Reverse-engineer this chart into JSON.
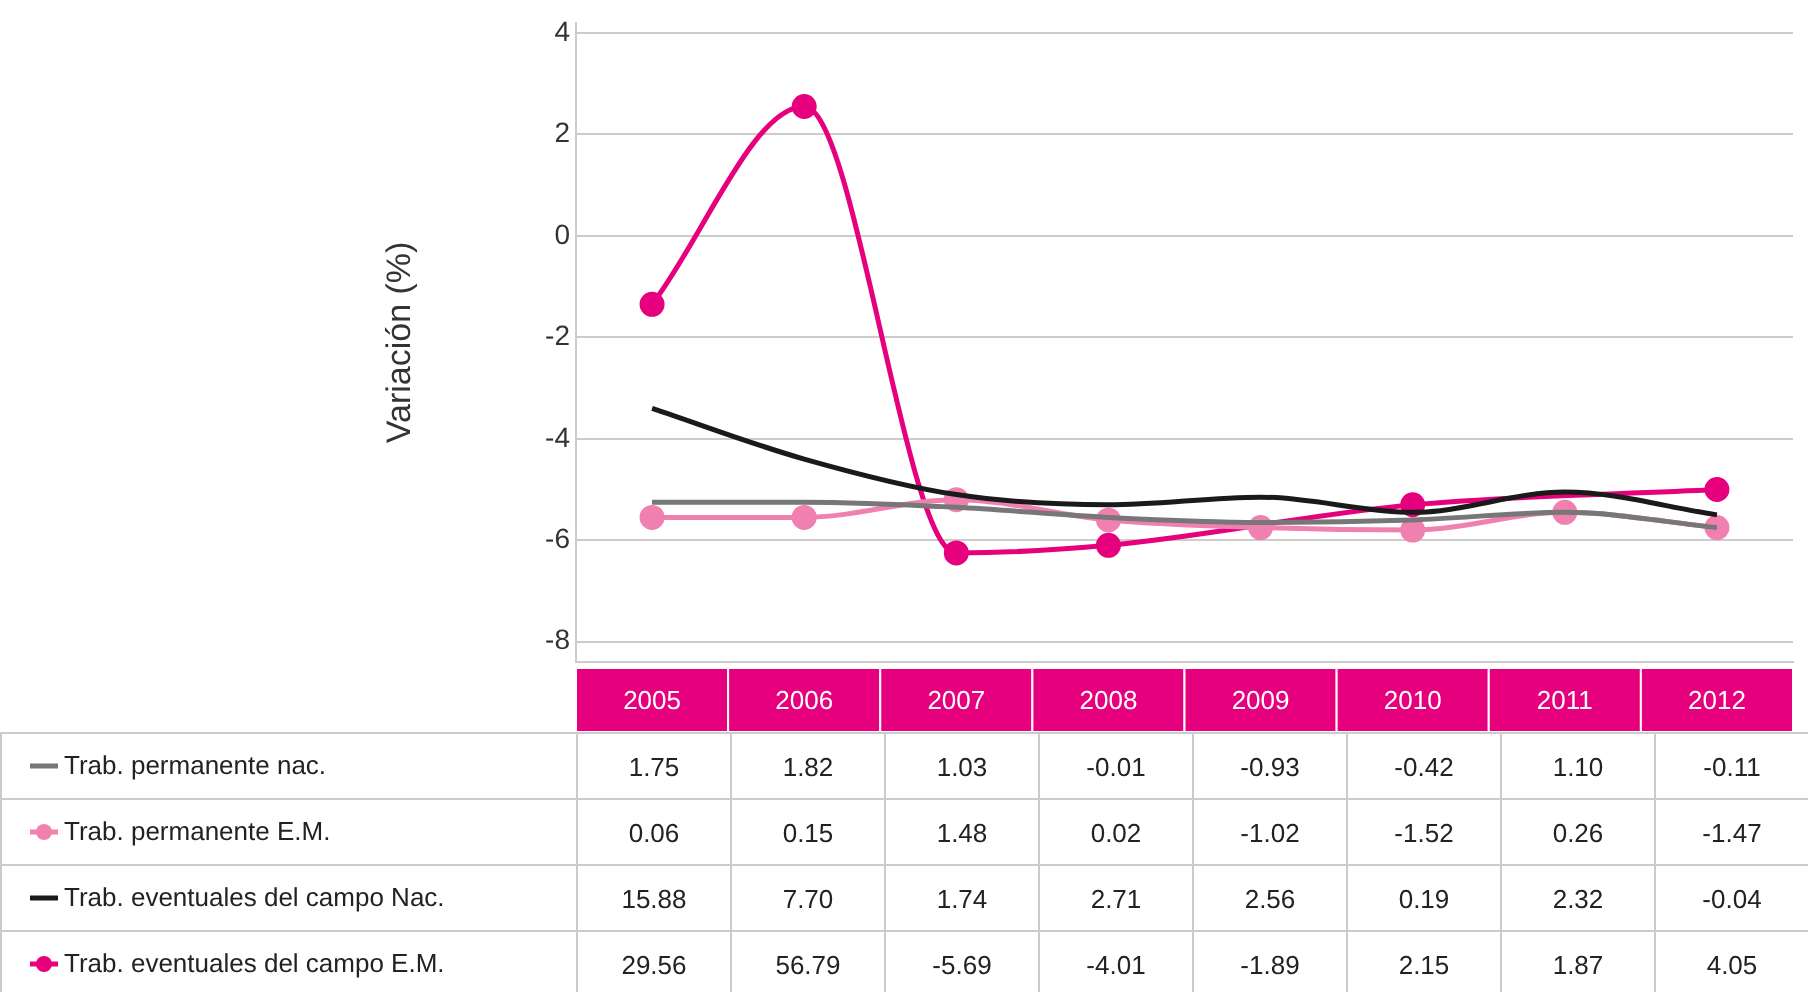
{
  "chart_data": [
    {
      "type": "line",
      "ylabel": "Variación (%)",
      "categories": [
        "2005",
        "2006",
        "2007",
        "2008",
        "2009",
        "2010",
        "2011",
        "2012"
      ],
      "ylim": [
        -8.4,
        4.2
      ],
      "yticks": [
        4,
        2,
        0,
        -2,
        -4,
        -6,
        -8
      ],
      "grid": "y",
      "series": [
        {
          "color": "#777777",
          "marker": "none",
          "values": [
            -5.25,
            -5.25,
            -5.35,
            -5.55,
            -5.65,
            -5.6,
            -5.45,
            -5.75
          ]
        },
        {
          "color": "#f080b0",
          "marker": "circle",
          "values": [
            -5.55,
            -5.55,
            -5.2,
            -5.6,
            -5.75,
            -5.8,
            -5.45,
            -5.75
          ]
        },
        {
          "color": "#1a1a1a",
          "marker": "none",
          "values": [
            -3.4,
            -4.4,
            -5.1,
            -5.3,
            -5.15,
            -5.45,
            -5.05,
            -5.5
          ]
        },
        {
          "color": "#e6007e",
          "marker": "circle",
          "values": [
            -1.35,
            2.55,
            -6.25,
            -6.1,
            null,
            -5.3,
            null,
            -5.0
          ]
        }
      ]
    },
    {
      "type": "other",
      "legend": "bottom left",
      "series": [
        {
          "name": "Trab. permanente nac.",
          "color": "#777777",
          "marker": "none"
        },
        {
          "name": "Trab. permanente E.M.",
          "color": "#f080b0",
          "marker": "circle"
        },
        {
          "name": "Trab. eventuales del campo Nac.",
          "color": "#1a1a1a",
          "marker": "none"
        },
        {
          "name": "Trab. eventuales del campo E.M.",
          "color": "#e6007e",
          "marker": "circle"
        }
      ],
      "annotations": [
        "1.75",
        "1.82",
        "1.03",
        "-0.01",
        "-0.93",
        "-0.42",
        "1.10",
        "-0.11",
        "0.06",
        "0.15",
        "1.48",
        "0.02",
        "-1.02",
        "-1.52",
        "0.26",
        "-1.47",
        "15.88",
        "7.70",
        "1.74",
        "2.71",
        "2.56",
        "0.19",
        "2.32",
        "-0.04",
        "29.56",
        "56.79",
        "-5.69",
        "-4.01",
        "-1.89",
        "2.15",
        "1.87",
        "4.05"
      ]
    }
  ]
}
